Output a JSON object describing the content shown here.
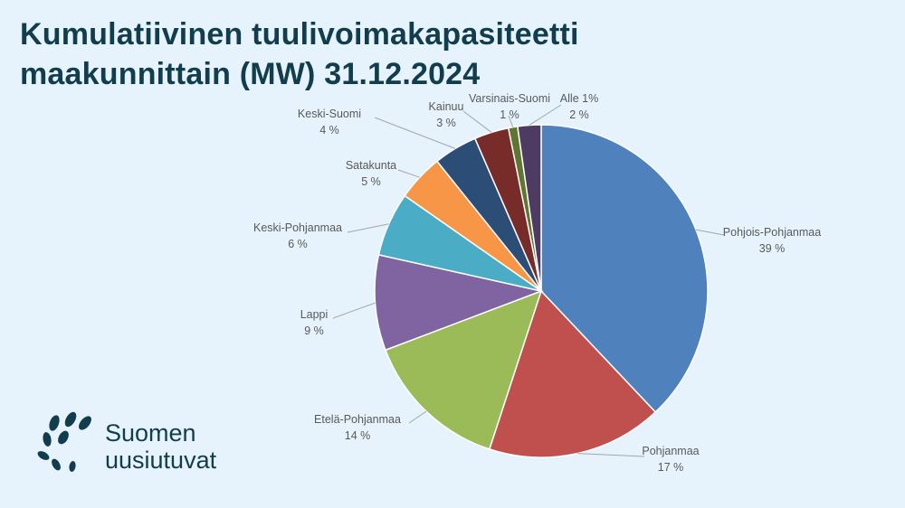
{
  "chart_data": {
    "type": "pie",
    "title": "Kumulatiivinen tuulivoimakapasiteetti maakunnittain (MW) 31.12.2024",
    "slices": [
      {
        "name": "Pohjois-Pohjanmaa",
        "label": "39 %",
        "value": 38.5,
        "color": "#4f81bd"
      },
      {
        "name": "Pohjanmaa",
        "label": "17 %",
        "value": 17.3,
        "color": "#c0504d"
      },
      {
        "name": "Etelä-Pohjanmaa",
        "label": "14 %",
        "value": 14.4,
        "color": "#9bbb59"
      },
      {
        "name": "Lappi",
        "label": "9 %",
        "value": 9.4,
        "color": "#8064a2"
      },
      {
        "name": "Keski-Pohjanmaa",
        "label": "6 %",
        "value": 6.3,
        "color": "#4bacc6"
      },
      {
        "name": "Satakunta",
        "label": "5 %",
        "value": 4.6,
        "color": "#f79646"
      },
      {
        "name": "Keski-Suomi",
        "label": "4 %",
        "value": 4.3,
        "color": "#2c4d75"
      },
      {
        "name": "Kainuu",
        "label": "3 %",
        "value": 3.4,
        "color": "#772c2a"
      },
      {
        "name": "Varsinais-Suomi",
        "label": "1 %",
        "value": 0.9,
        "color": "#5f7530"
      },
      {
        "name": "Alle 1%",
        "label": "2 %",
        "value": 2.3,
        "color": "#4d3b62"
      }
    ],
    "legend": "none",
    "labels": "outside with leader lines"
  },
  "brand": {
    "line1": "Suomen",
    "line2": "uusiutuvat",
    "color": "#123d4c"
  }
}
